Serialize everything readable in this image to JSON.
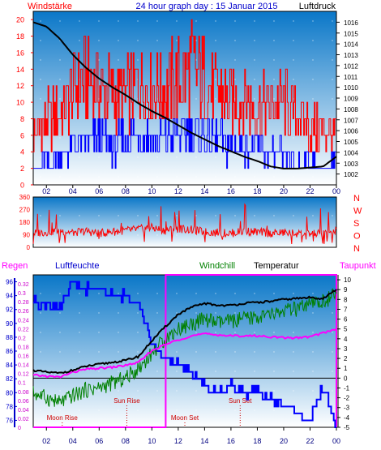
{
  "header": {
    "left_label": "Windstärke",
    "title": "24 hour graph day : 15 Januar 2015",
    "right_label": "Luftdruck"
  },
  "middle": {
    "direction_labels": [
      "N",
      "W",
      "S",
      "O",
      "N"
    ]
  },
  "bottom_header": {
    "regen": "Regen",
    "luftfeuchte": "Luftfeuchte",
    "windchill": "Windchill",
    "temperatur": "Temperatur",
    "taupunkt": "Taupunkt"
  },
  "colors": {
    "sky_top": "#0a77c8",
    "sky_bottom": "#ffffff",
    "wind_max": "#ff0000",
    "wind_avg": "#0000ff",
    "pressure": "#000000",
    "humidity": "#0000ff",
    "windchill": "#008000",
    "temperature": "#000000",
    "dewpoint": "#ff00ff",
    "rain": "#ff00ff",
    "astro_text": "#cc0000",
    "axis_left_bottom": "#0000cc"
  },
  "chart_data": [
    {
      "type": "line",
      "title": "24 hour graph day : 15 Januar 2015",
      "xticks": [
        "02",
        "04",
        "06",
        "08",
        "10",
        "12",
        "14",
        "16",
        "18",
        "20",
        "22",
        "00"
      ],
      "xlim": [
        1,
        24
      ],
      "left_axis": {
        "label": "Windstärke",
        "ylim": [
          0,
          21
        ],
        "ticks": [
          "0",
          "2",
          "4",
          "6",
          "8",
          "10",
          "12",
          "14",
          "16",
          "18",
          "20"
        ]
      },
      "right_axis": {
        "label": "Luftdruck",
        "ylim": [
          1001,
          1017
        ],
        "ticks": [
          "1002",
          "1003",
          "1004",
          "1005",
          "1006",
          "1007",
          "1008",
          "1009",
          "1010",
          "1011",
          "1012",
          "1013",
          "1014",
          "1015",
          "1016"
        ]
      },
      "series": [
        {
          "name": "Luftdruck",
          "axis": "right",
          "color": "#000000",
          "x": [
            1,
            2,
            3,
            4,
            5,
            6,
            7,
            8,
            9,
            10,
            11,
            12,
            13,
            14,
            15,
            16,
            17,
            18,
            19,
            20,
            21,
            22,
            23,
            24
          ],
          "values": [
            1016,
            1015.6,
            1014.5,
            1013,
            1011.8,
            1010.8,
            1010,
            1009.3,
            1008.5,
            1007.8,
            1007.2,
            1006.5,
            1005.8,
            1005.2,
            1004.6,
            1004.1,
            1003.6,
            1003.2,
            1002.7,
            1002.5,
            1002.5,
            1002.6,
            1002.7,
            1003.6
          ]
        },
        {
          "name": "Wind max",
          "axis": "left",
          "color": "#ff0000",
          "x": [
            1,
            2,
            3,
            4,
            5,
            6,
            7,
            8,
            9,
            10,
            11,
            12,
            13,
            14,
            15,
            16,
            17,
            18,
            19,
            20,
            21,
            22,
            23,
            24
          ],
          "values": [
            9,
            11,
            12,
            16,
            18,
            17,
            16,
            15,
            18,
            17,
            17,
            18,
            20,
            18,
            16,
            14,
            15,
            13,
            14,
            14,
            12,
            10,
            9,
            9
          ]
        },
        {
          "name": "Wind mittel",
          "axis": "left",
          "color": "#0000ff",
          "x": [
            1,
            2,
            3,
            4,
            5,
            6,
            7,
            8,
            9,
            10,
            11,
            12,
            13,
            14,
            15,
            16,
            17,
            18,
            19,
            20,
            21,
            22,
            23,
            24
          ],
          "values": [
            2,
            3,
            4,
            5,
            6,
            6,
            5,
            6,
            7,
            6,
            6,
            7,
            7,
            7,
            6,
            5,
            5,
            5,
            4,
            4,
            3,
            3,
            2,
            3
          ]
        }
      ]
    },
    {
      "type": "line",
      "xlim": [
        1,
        24
      ],
      "left_axis": {
        "ylim": [
          0,
          360
        ],
        "ticks": [
          "0",
          "90",
          "180",
          "270",
          "360"
        ]
      },
      "right_labels": [
        "N",
        "W",
        "S",
        "O",
        "N"
      ],
      "series": [
        {
          "name": "Windrichtung",
          "color": "#ff0000",
          "x": [
            1,
            2,
            3,
            4,
            5,
            6,
            7,
            8,
            9,
            10,
            11,
            12,
            13,
            14,
            15,
            16,
            17,
            18,
            19,
            20,
            21,
            22,
            23,
            24
          ],
          "values": [
            100,
            110,
            120,
            105,
            115,
            100,
            110,
            120,
            130,
            140,
            120,
            135,
            125,
            110,
            105,
            100,
            115,
            110,
            100,
            105,
            100,
            95,
            100,
            115
          ]
        }
      ]
    },
    {
      "type": "line",
      "xlim": [
        1,
        24
      ],
      "xticks": [
        "02",
        "04",
        "06",
        "08",
        "10",
        "12",
        "14",
        "16",
        "18",
        "20",
        "22",
        "00"
      ],
      "axes": {
        "luftfeuchte": {
          "label": "Luftfeuchte",
          "ylim": [
            75,
            97
          ],
          "ticks": [
            "76",
            "78",
            "80",
            "82",
            "84",
            "86",
            "88",
            "90",
            "92",
            "94",
            "96"
          ]
        },
        "regen": {
          "label": "Regen",
          "ylim": [
            0,
            0.34
          ],
          "ticks": [
            "0",
            "0.02",
            "0.04",
            "0.06",
            "0.08",
            "0.1",
            "0.12",
            "0.14",
            "0.16",
            "0.18",
            "0.2",
            "0.22",
            "0.24",
            "0.26",
            "0.28",
            "0.3",
            "0.32"
          ]
        },
        "temperatur": {
          "label": "Temperatur",
          "ylim": [
            -5,
            10.5
          ],
          "ticks": [
            "-5",
            "-4",
            "-3",
            "-2",
            "-1",
            "0",
            "1",
            "2",
            "3",
            "4",
            "5",
            "6",
            "7",
            "8",
            "9",
            "10"
          ]
        }
      },
      "series": [
        {
          "name": "Luftfeuchte",
          "axis": "luftfeuchte",
          "color": "#0000ff",
          "x": [
            1,
            2,
            3,
            4,
            5,
            6,
            7,
            8,
            9,
            10,
            11,
            12,
            13,
            14,
            15,
            16,
            17,
            18,
            19,
            20,
            21,
            22,
            23,
            24
          ],
          "values": [
            93,
            93,
            92,
            96,
            95,
            95,
            94,
            94,
            93,
            87,
            85,
            84,
            83,
            81,
            80,
            81,
            80,
            80,
            79,
            78,
            77,
            76,
            81,
            75
          ]
        },
        {
          "name": "Temperatur",
          "axis": "temperatur",
          "color": "#000000",
          "x": [
            1,
            2,
            3,
            4,
            5,
            6,
            7,
            8,
            9,
            10,
            11,
            12,
            13,
            14,
            15,
            16,
            17,
            18,
            19,
            20,
            21,
            22,
            23,
            24
          ],
          "values": [
            0.8,
            0.6,
            0.5,
            0.8,
            1.2,
            1.4,
            1.6,
            1.8,
            2.2,
            3.8,
            5.2,
            6.5,
            7.2,
            7.6,
            7.4,
            7.4,
            7.6,
            7.7,
            7.8,
            8,
            8.1,
            8.2,
            8.1,
            9
          ]
        },
        {
          "name": "Windchill",
          "axis": "temperatur",
          "color": "#008000",
          "x": [
            1,
            2,
            3,
            4,
            5,
            6,
            7,
            8,
            9,
            10,
            11,
            12,
            13,
            14,
            15,
            16,
            17,
            18,
            19,
            20,
            21,
            22,
            23,
            24
          ],
          "values": [
            -1.5,
            -2,
            -2.5,
            -1.8,
            -1.2,
            -1,
            -0.5,
            0,
            1,
            2.5,
            4,
            5,
            5.5,
            6,
            5.6,
            5.8,
            6,
            6.2,
            6.4,
            6.8,
            7,
            7.4,
            7.8,
            8.5
          ]
        },
        {
          "name": "Taupunkt",
          "axis": "temperatur",
          "color": "#ff00ff",
          "x": [
            1,
            2,
            3,
            4,
            5,
            6,
            7,
            8,
            9,
            10,
            11,
            12,
            13,
            14,
            15,
            16,
            17,
            18,
            19,
            20,
            21,
            22,
            23,
            24
          ],
          "values": [
            0.3,
            0.2,
            0.1,
            0.6,
            0.9,
            1,
            1.1,
            1.3,
            1.6,
            2.8,
            3.4,
            3.9,
            4.3,
            4.5,
            4.4,
            4.3,
            4.3,
            4.3,
            4.2,
            4.1,
            4.1,
            4.2,
            4.6,
            5
          ]
        },
        {
          "name": "Regen",
          "axis": "regen",
          "color": "#ff00ff",
          "x": [
            1,
            11.05,
            11.05,
            24,
            24
          ],
          "values": [
            0,
            0,
            0.34,
            0.34,
            0
          ]
        }
      ],
      "astro": [
        {
          "label": "Moon Rise",
          "time": 3.2
        },
        {
          "label": "Sun Rise",
          "time": 8.1
        },
        {
          "label": "Moon Set",
          "time": 12.5
        },
        {
          "label": "Sun Set",
          "time": 16.7
        }
      ]
    }
  ]
}
